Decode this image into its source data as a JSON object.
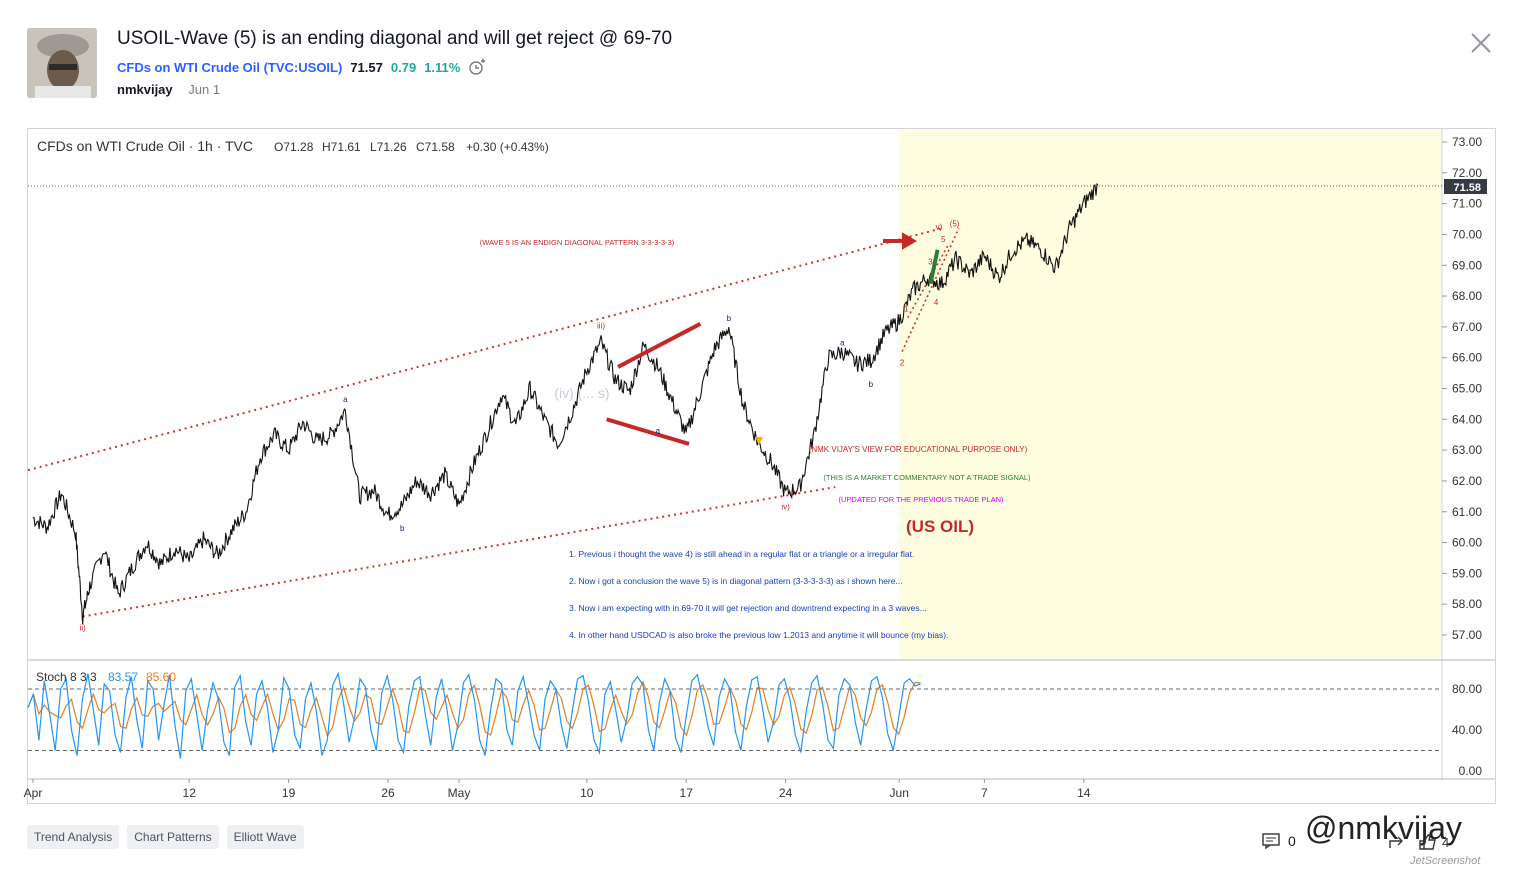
{
  "header": {
    "title": "USOIL-Wave (5) is an ending diagonal and will get reject @ 69-70",
    "symbol_link": "CFDs on WTI Crude Oil (TVC:USOIL)",
    "last_price": "71.57",
    "change": "0.79",
    "change_pct": "1.11%",
    "author": "nmkvijay",
    "published": "Jun 1"
  },
  "chart_data": {
    "type": "line",
    "title": "CFDs on WTI Crude Oil · 1h · TVC",
    "ohlc": {
      "o": "O71.28",
      "h": "H71.61",
      "l": "L71.26",
      "c": "C71.58",
      "chg": "+0.30 (+0.43%)"
    },
    "current_price_label": "71.58",
    "ylim": [
      56.5,
      73.2
    ],
    "yticks": [
      "73.00",
      "72.00",
      "71.00",
      "70.00",
      "69.00",
      "68.00",
      "67.00",
      "66.00",
      "65.00",
      "64.00",
      "63.00",
      "62.00",
      "61.00",
      "60.00",
      "59.00",
      "58.00",
      "57.00"
    ],
    "x_labels": [
      "Apr",
      "12",
      "19",
      "26",
      "May",
      "10",
      "17",
      "24",
      "Jun",
      "7",
      "14"
    ],
    "x_label_days": [
      0,
      11,
      18,
      25,
      30,
      39,
      46,
      53,
      61,
      67,
      74
    ],
    "price_path": [
      [
        0,
        60.8
      ],
      [
        1,
        60.5
      ],
      [
        2,
        61.6
      ],
      [
        3,
        60.3
      ],
      [
        3.5,
        57.6
      ],
      [
        4,
        58.6
      ],
      [
        5,
        59.8
      ],
      [
        6,
        58.3
      ],
      [
        7,
        59.2
      ],
      [
        8,
        60.0
      ],
      [
        9,
        59.3
      ],
      [
        10,
        59.8
      ],
      [
        11,
        59.4
      ],
      [
        12,
        60.1
      ],
      [
        13,
        59.6
      ],
      [
        14,
        60.4
      ],
      [
        15,
        61.0
      ],
      [
        16,
        62.8
      ],
      [
        17,
        63.5
      ],
      [
        18,
        63.0
      ],
      [
        19,
        63.9
      ],
      [
        20,
        63.3
      ],
      [
        21,
        63.5
      ],
      [
        22,
        64.3
      ],
      [
        23,
        61.5
      ],
      [
        24,
        61.7
      ],
      [
        25,
        60.9
      ],
      [
        26,
        61.2
      ],
      [
        27,
        62.0
      ],
      [
        28,
        61.6
      ],
      [
        29,
        62.2
      ],
      [
        30,
        61.2
      ],
      [
        31,
        62.5
      ],
      [
        32,
        63.6
      ],
      [
        33,
        64.8
      ],
      [
        34,
        63.8
      ],
      [
        35,
        65.0
      ],
      [
        36,
        64.0
      ],
      [
        37,
        63.2
      ],
      [
        38,
        64.3
      ],
      [
        39,
        65.6
      ],
      [
        40,
        66.5
      ],
      [
        41,
        65.3
      ],
      [
        42,
        64.9
      ],
      [
        43,
        66.4
      ],
      [
        44,
        65.7
      ],
      [
        45,
        64.6
      ],
      [
        46,
        63.5
      ],
      [
        47,
        64.9
      ],
      [
        48,
        66.3
      ],
      [
        49,
        67.0
      ],
      [
        50,
        64.5
      ],
      [
        51,
        63.3
      ],
      [
        52,
        62.6
      ],
      [
        53,
        61.6
      ],
      [
        54,
        61.8
      ],
      [
        55,
        63.5
      ],
      [
        56,
        66.0
      ],
      [
        57,
        66.2
      ],
      [
        58,
        65.8
      ],
      [
        59,
        65.9
      ],
      [
        60,
        66.8
      ],
      [
        61,
        67.2
      ],
      [
        62,
        68.2
      ],
      [
        63,
        68.6
      ],
      [
        64,
        68.4
      ],
      [
        65,
        69.2
      ],
      [
        66,
        68.7
      ],
      [
        67,
        69.3
      ],
      [
        68,
        68.6
      ],
      [
        69,
        69.5
      ],
      [
        70,
        69.8
      ],
      [
        71,
        69.5
      ],
      [
        72,
        68.9
      ],
      [
        73,
        70.2
      ],
      [
        74,
        71.0
      ],
      [
        75,
        71.6
      ]
    ],
    "highlight_start_day": 61,
    "annotations": {
      "pattern_title": "(WAVE 5 IS AN ENDIGN DIAGONAL PATTERN 3-3-3-3-3)",
      "view": "(NMK VIJAY'S VIEW FOR EDUCATIONAL PURPOSE ONLY)",
      "commentary": "(THIS IS A MARKET COMMENTARY NOT A TRADE SIGNAL)",
      "updated": "(UPDATED FOR THE PREVIOUS TRADE PLAN)",
      "symbol_big": "(US OIL)",
      "note1": "1. Previous i thought the wave 4) is still ahead in a regular flat or a triangle or a irregular flat.",
      "note2": "2. Now i got a conclusion the wave 5) is in diagonal pattern (3-3-3-3-3) as i shown here...",
      "note3": "3. Now i am expecting with in 69-70 it will get rejection and downtrend expecting in a 3 waves...",
      "note4": "4. In other hand USDCAD is also broke the previous low 1.2013 and anytime it will bounce (my bias).",
      "faded_label": "(iv) (... s)",
      "waves": [
        {
          "label": "ii)",
          "day": 3.5,
          "price": 57.6,
          "color": "#c62828",
          "dy": 14
        },
        {
          "label": "a",
          "day": 22,
          "price": 64.3,
          "color": "#1a237e",
          "dy": -8
        },
        {
          "label": "b",
          "day": 26,
          "price": 60.9,
          "color": "#1a237e",
          "dy": 16
        },
        {
          "label": "iii)",
          "day": 40,
          "price": 66.5,
          "color": "#c62828",
          "dy": -14
        },
        {
          "label": "a",
          "day": 44,
          "price": 63.8,
          "color": "#1a237e",
          "dy": 8
        },
        {
          "label": "b",
          "day": 49,
          "price": 67.0,
          "color": "#1a237e",
          "dy": -6
        },
        {
          "label": "iv)",
          "day": 53,
          "price": 61.6,
          "color": "#c62828",
          "dy": 16
        },
        {
          "label": "a",
          "day": 57,
          "price": 66.2,
          "color": "#1a237e",
          "dy": -6
        },
        {
          "label": "b",
          "day": 59,
          "price": 65.5,
          "color": "#1a237e",
          "dy": 14
        },
        {
          "label": "1",
          "day": 61.5,
          "price": 67.3,
          "color": "#c62828",
          "dy": -6
        },
        {
          "label": "2",
          "day": 61.2,
          "price": 66.2,
          "color": "#c62828",
          "dy": 14
        },
        {
          "label": "3",
          "day": 63.2,
          "price": 68.9,
          "color": "#c62828",
          "dy": -4
        },
        {
          "label": "4",
          "day": 63.6,
          "price": 68.1,
          "color": "#c62828",
          "dy": 12
        },
        {
          "label": "5",
          "day": 64.1,
          "price": 69.5,
          "color": "#c62828",
          "dy": -8
        },
        {
          "label": "v)",
          "day": 63.8,
          "price": 69.9,
          "color": "#c62828",
          "dy": -8
        },
        {
          "label": "(5)",
          "day": 64.9,
          "price": 70.0,
          "color": "#c62828",
          "dy": -8
        }
      ]
    },
    "stoch": {
      "label": "Stoch 8 3 3",
      "k_value": "83.57",
      "d_value": "85.60",
      "yticks": [
        "80.00",
        "40.00",
        "0.00"
      ],
      "k": [
        62,
        75,
        30,
        88,
        55,
        20,
        80,
        90,
        40,
        15,
        70,
        95,
        60,
        25,
        85,
        78,
        35,
        18,
        72,
        92,
        50,
        22,
        88,
        80,
        30,
        65,
        94,
        45,
        12,
        78,
        90,
        55,
        20,
        60,
        86,
        70,
        28,
        15,
        82,
        93,
        48,
        25,
        75,
        88,
        62,
        18,
        40,
        91,
        80,
        35,
        22,
        70,
        86,
        58,
        15,
        30,
        84,
        95,
        66,
        28,
        52,
        90,
        82,
        40,
        20,
        76,
        93,
        70,
        30,
        18,
        64,
        88,
        92,
        55,
        25,
        72,
        90,
        60,
        20,
        45,
        86,
        94,
        70,
        30,
        15,
        60,
        90,
        85,
        40,
        25,
        78,
        92,
        65,
        35,
        20,
        70,
        88,
        80,
        45,
        22,
        58,
        90,
        93,
        68,
        30,
        18,
        75,
        87,
        60,
        28,
        50,
        85,
        92,
        84,
        40,
        20,
        66,
        90,
        78,
        32,
        18,
        55,
        88,
        94,
        70,
        42,
        25,
        72,
        90,
        80,
        38,
        20,
        63,
        89,
        92,
        60,
        28,
        48,
        84,
        90,
        70,
        35,
        18,
        58,
        86,
        93,
        66,
        30,
        22,
        74,
        90,
        84,
        48,
        25,
        60,
        88,
        92,
        72,
        36,
        20,
        52,
        86,
        90,
        83,
        85
      ]
    }
  },
  "tags": [
    "Trend Analysis",
    "Chart Patterns",
    "Elliott Wave"
  ],
  "footer": {
    "comments": "0",
    "boosts": "4",
    "watermark": "@nmkvijay",
    "watermark_small": "JetScreenshot"
  },
  "colors": {
    "accent": "#2962ff",
    "up": "#26a69a",
    "red": "#c62828",
    "navy": "#1a237e",
    "highlight": "#fffde0",
    "stoch_k": "#2196f3",
    "stoch_d": "#e67e22"
  }
}
